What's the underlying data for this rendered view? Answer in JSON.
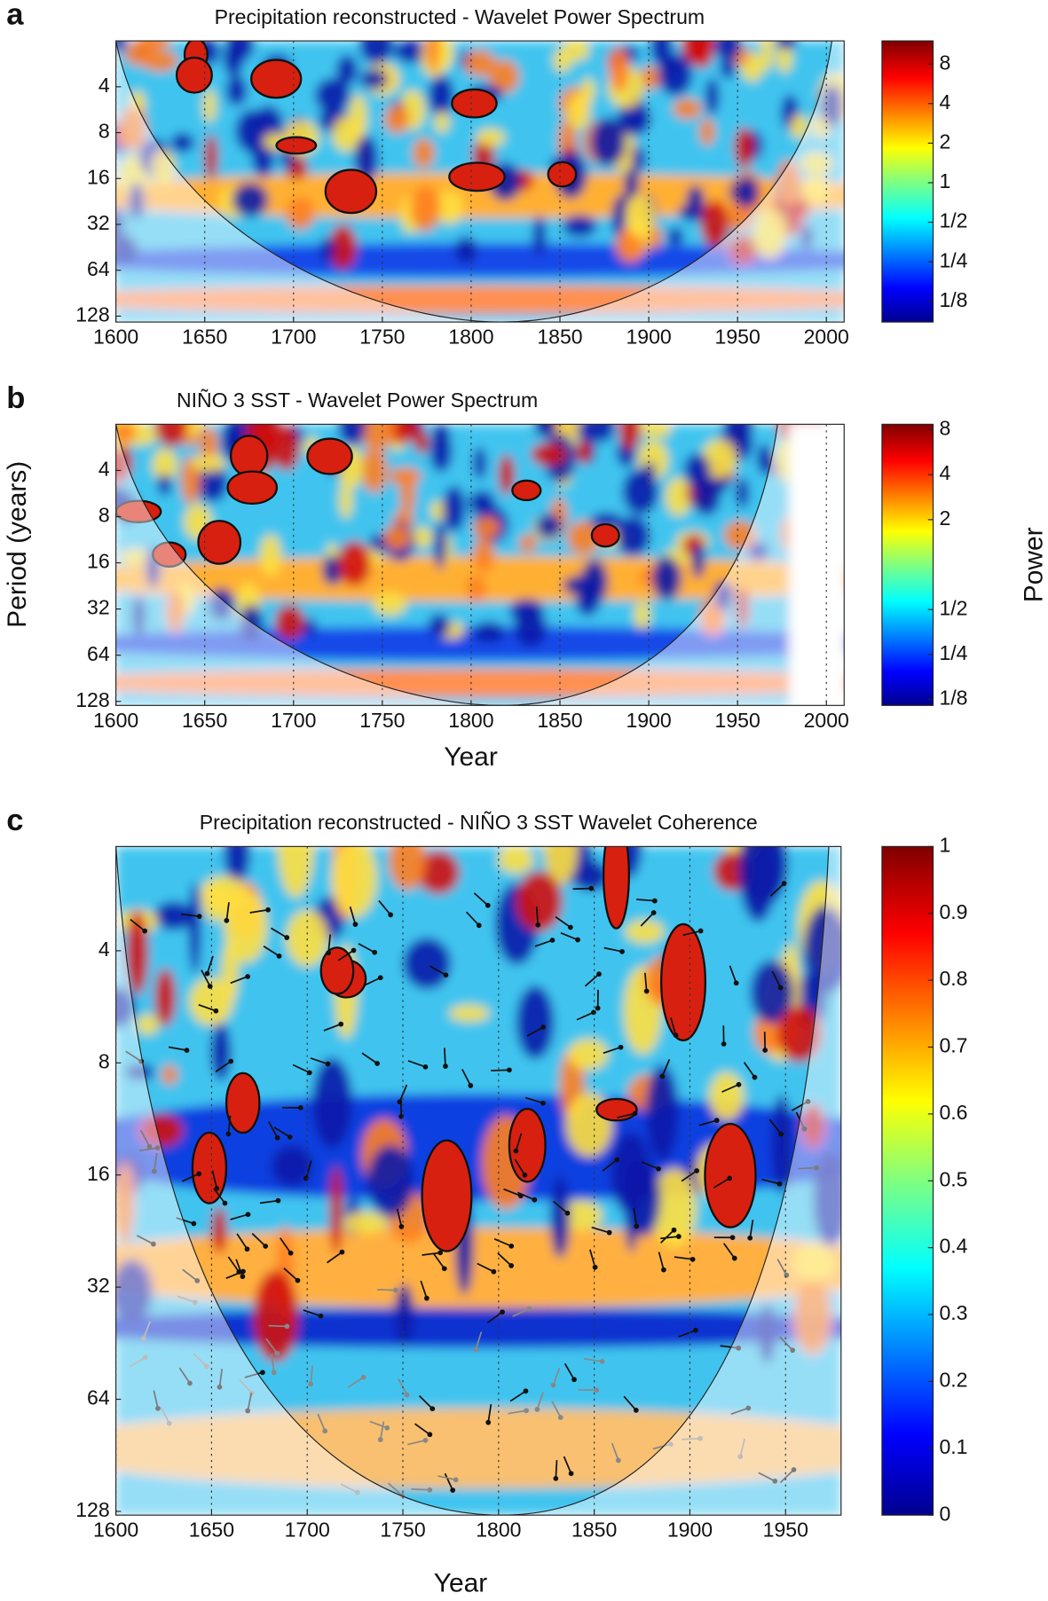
{
  "chart_data": [
    {
      "type": "heatmap",
      "panel_label": "a",
      "title": "Precipitation reconstructed - Wavelet Power Spectrum",
      "xlim": [
        1600,
        2010
      ],
      "xticks": [
        1600,
        1650,
        1700,
        1750,
        1800,
        1850,
        1900,
        1950,
        2000
      ],
      "ylim": [
        2,
        140
      ],
      "yticks": [
        4,
        8,
        16,
        32,
        64,
        128
      ],
      "ylog": true,
      "grid": true,
      "colorbar": {
        "log": true,
        "lim": [
          0.087,
          12
        ],
        "ticks": [
          8,
          4,
          2,
          1,
          {
            "value": 0.5,
            "label": "1/2"
          },
          {
            "value": 0.25,
            "label": "1/4"
          },
          {
            "value": 0.125,
            "label": "1/8"
          }
        ]
      }
    },
    {
      "type": "heatmap",
      "panel_label": "b",
      "title": "NIÑO 3  SST - Wavelet Power Spectrum",
      "xlim": [
        1600,
        2010
      ],
      "xticks": [
        1600,
        1650,
        1700,
        1750,
        1800,
        1850,
        1900,
        1950,
        2000
      ],
      "ylim": [
        2,
        136
      ],
      "yticks": [
        4,
        8,
        16,
        32,
        64,
        128
      ],
      "ylog": true,
      "grid": true,
      "ylabel": "Period (years)",
      "xlabel": "Year",
      "colorbar": {
        "log": true,
        "lim": [
          0.114,
          8.7
        ],
        "label": "Power",
        "ticks": [
          8,
          4,
          2,
          {
            "value": 0.5,
            "label": "1/2"
          },
          {
            "value": 0.25,
            "label": "1/4"
          },
          {
            "value": 0.125,
            "label": "1/8"
          }
        ]
      }
    },
    {
      "type": "heatmap",
      "panel_label": "c",
      "title": "Precipitation reconstructed - NIÑO 3 SST  Wavelet Coherence",
      "xlim": [
        1600,
        1979
      ],
      "xticks": [
        1600,
        1650,
        1700,
        1750,
        1800,
        1850,
        1900,
        1950
      ],
      "ylim": [
        2.1,
        131
      ],
      "yticks": [
        4,
        8,
        16,
        32,
        64,
        128
      ],
      "ylog": true,
      "grid": true,
      "xlabel": "Year",
      "colorbar": {
        "log": false,
        "lim": [
          0,
          1
        ],
        "ticks": [
          0,
          0.1,
          0.2,
          0.3,
          0.4,
          0.5,
          0.6,
          0.7,
          0.8,
          0.9,
          1
        ]
      }
    }
  ]
}
